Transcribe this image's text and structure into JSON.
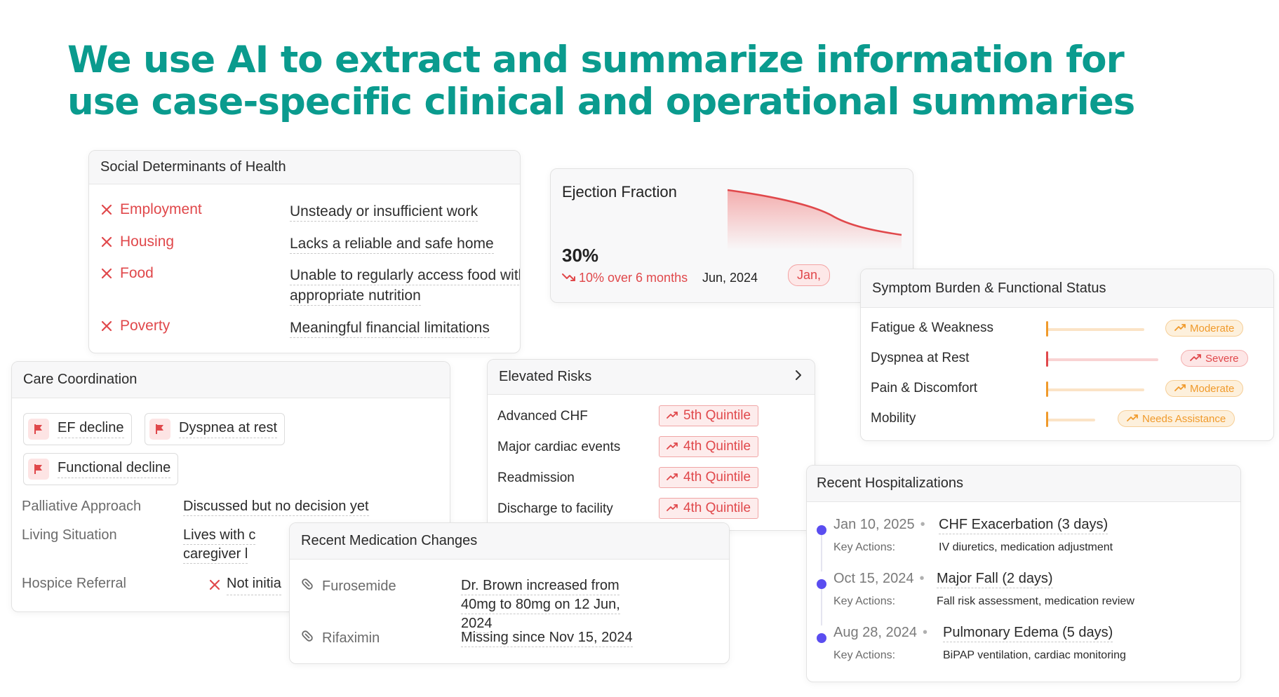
{
  "headline": {
    "line1": "We use AI to extract and summarize information for",
    "line2": "use case-specific clinical and operational summaries"
  },
  "colors": {
    "brand": "#0a9b8e",
    "alert_red": "#e0484b",
    "warning_orange": "#f09a2b",
    "timeline_purple": "#5a4df0"
  },
  "sdoh": {
    "title": "Social Determinants of Health",
    "items": [
      {
        "label": "Employment",
        "value": "Unsteady or insufficient work",
        "icon": "x-icon"
      },
      {
        "label": "Housing",
        "value": "Lacks a reliable and safe home",
        "icon": "x-icon"
      },
      {
        "label": "Food",
        "value": "Unable to regularly access food with appropriate nutrition",
        "icon": "x-icon"
      },
      {
        "label": "Poverty",
        "value": "Meaningful financial limitations",
        "icon": "x-icon"
      }
    ]
  },
  "ejection_fraction": {
    "title": "Ejection Fraction",
    "value": "30%",
    "change": "10% over 6 months",
    "change_icon": "trend-down-icon",
    "date_start": "Jun, 2024",
    "date_end": "Jan,"
  },
  "symptom_burden": {
    "title": "Symptom Burden & Functional Status",
    "items": [
      {
        "label": "Fatigue & Weakness",
        "status": "Moderate",
        "level": "moderate",
        "icon": "trend-up-icon"
      },
      {
        "label": "Dyspnea at Rest",
        "status": "Severe",
        "level": "severe",
        "icon": "trend-up-icon"
      },
      {
        "label": "Pain & Discomfort",
        "status": "Moderate",
        "level": "moderate",
        "icon": "trend-up-icon"
      },
      {
        "label": "Mobility",
        "status": "Needs Assistance",
        "level": "assist",
        "icon": "trend-up-icon"
      }
    ]
  },
  "care_coordination": {
    "title": "Care Coordination",
    "flags": [
      "EF decline",
      "Dyspnea at rest",
      "Functional decline"
    ],
    "flag_icon": "flag-icon",
    "fields": [
      {
        "label": "Palliative Approach",
        "value": "Discussed but no decision yet"
      },
      {
        "label": "Living Situation",
        "value_line1": "Lives with c",
        "value_line2": "caregiver l"
      },
      {
        "label": "Hospice Referral",
        "value": "Not initia",
        "icon": "x-icon"
      }
    ]
  },
  "elevated_risks": {
    "title": "Elevated Risks",
    "chevron_icon": "chevron-right-icon",
    "items": [
      {
        "label": "Advanced CHF",
        "badge": "5th Quintile"
      },
      {
        "label": "Major cardiac events",
        "badge": "4th Quintile"
      },
      {
        "label": "Readmission",
        "badge": "4th Quintile"
      },
      {
        "label": "Discharge to facility",
        "badge": "4th Quintile"
      }
    ],
    "badge_icon": "trend-up-icon"
  },
  "medications": {
    "title": "Recent Medication Changes",
    "pill_icon": "pill-icon",
    "items": [
      {
        "name": "Furosemide",
        "change": "Dr. Brown increased from 40mg to 80mg on 12 Jun, 2024"
      },
      {
        "name": "Rifaximin",
        "change": "Missing since Nov 15, 2024"
      }
    ]
  },
  "hospitalizations": {
    "title": "Recent Hospitalizations",
    "key_label": "Key Actions:",
    "items": [
      {
        "date": "Jan 10, 2025",
        "event": "CHF Exacerbation (3 days)",
        "actions": "IV diuretics, medication adjustment"
      },
      {
        "date": "Oct 15, 2024",
        "event": "Major Fall (2 days)",
        "actions": "Fall risk assessment, medication review"
      },
      {
        "date": "Aug 28, 2024",
        "event": "Pulmonary Edema (5 days)",
        "actions": "BiPAP ventilation, cardiac monitoring"
      }
    ]
  }
}
